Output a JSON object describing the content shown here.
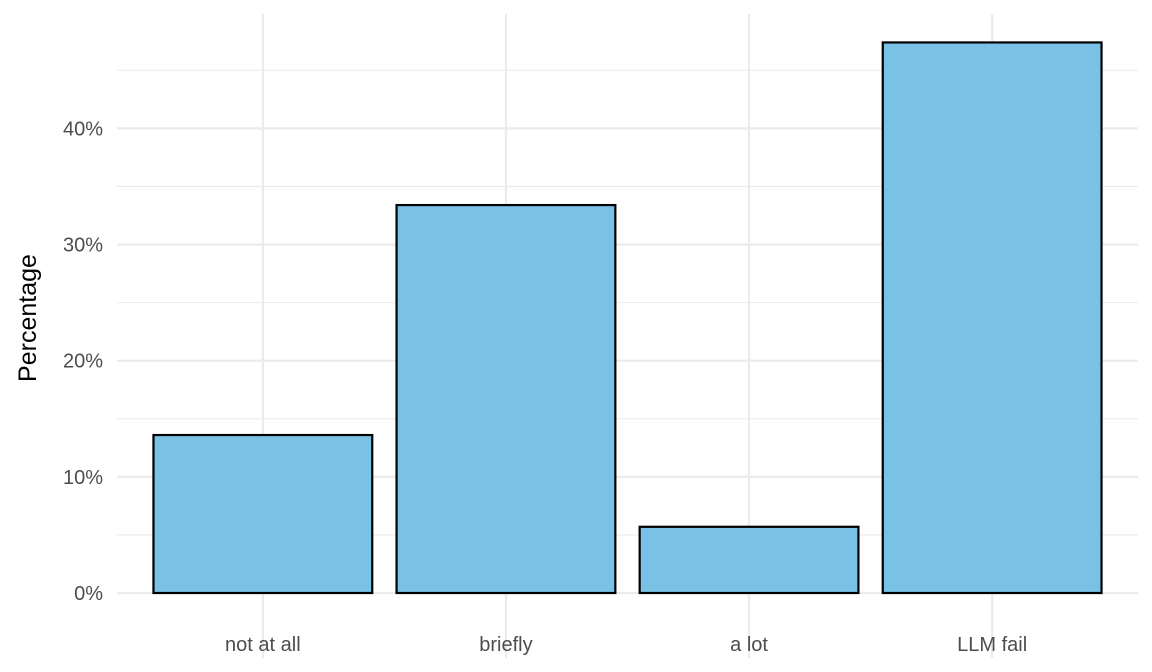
{
  "chart_data": {
    "type": "bar",
    "title": "",
    "xlabel": "",
    "ylabel": "Percentage",
    "categories": [
      "not at all",
      "briefly",
      "a lot",
      "LLM fail"
    ],
    "values": [
      13.6,
      33.4,
      5.7,
      47.4
    ],
    "unit": "%",
    "ylim": [
      0,
      50
    ],
    "yticks": [
      0,
      10,
      20,
      30,
      40
    ],
    "ytick_labels": [
      "0%",
      "10%",
      "20%",
      "30%",
      "40%"
    ],
    "grid": true,
    "legend": "none",
    "bar_fill": "#7AC2E5",
    "bar_outline": "#000000",
    "grid_color": "#EBEBEB"
  }
}
